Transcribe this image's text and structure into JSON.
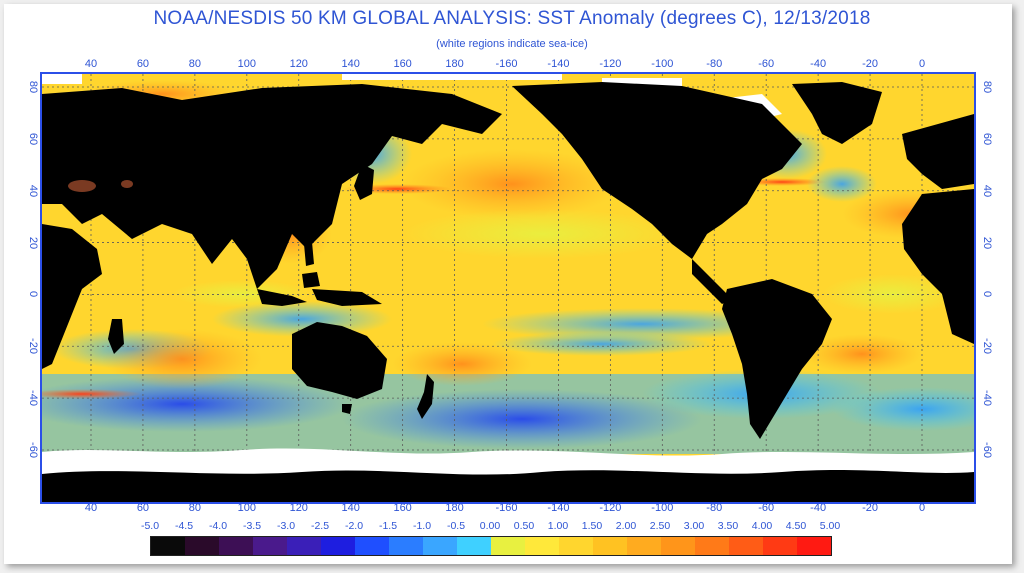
{
  "header": {
    "title": "NOAA/NESDIS 50 KM GLOBAL ANALYSIS: SST Anomaly (degrees C), 12/13/2018",
    "subtitle": "(white regions indicate sea-ice)"
  },
  "lon_labels": [
    "40",
    "60",
    "80",
    "100",
    "120",
    "140",
    "160",
    "180",
    "-160",
    "-140",
    "-120",
    "-100",
    "-80",
    "-60",
    "-40",
    "-20",
    "0"
  ],
  "lat_labels": [
    "80",
    "60",
    "40",
    "20",
    "0",
    "-20",
    "-40",
    "-60"
  ],
  "colorbar": {
    "labels": [
      "-5.0",
      "-4.5",
      "-4.0",
      "-3.5",
      "-3.0",
      "-2.5",
      "-2.0",
      "-1.5",
      "-1.0",
      "-0.5",
      "0.00",
      "0.50",
      "1.00",
      "1.50",
      "2.00",
      "2.50",
      "3.00",
      "3.50",
      "4.00",
      "4.50",
      "5.00"
    ],
    "colors": [
      "#0a0a0a",
      "#2a0a2a",
      "#3d0f55",
      "#4a1a8c",
      "#3a1fb8",
      "#1e1ee0",
      "#1f4fff",
      "#2b7dff",
      "#3aa6ff",
      "#3fd0ff",
      "#e8f040",
      "#ffe83a",
      "#ffd62e",
      "#ffc222",
      "#ffab1f",
      "#ff951a",
      "#ff7a18",
      "#ff5c16",
      "#ff3a14",
      "#ff1a12"
    ]
  },
  "map": {
    "land_color": "#000000",
    "ice_color": "#ffffff",
    "ocean_base_color": "#ffd62e",
    "grid_color": "#5a5a5a"
  }
}
